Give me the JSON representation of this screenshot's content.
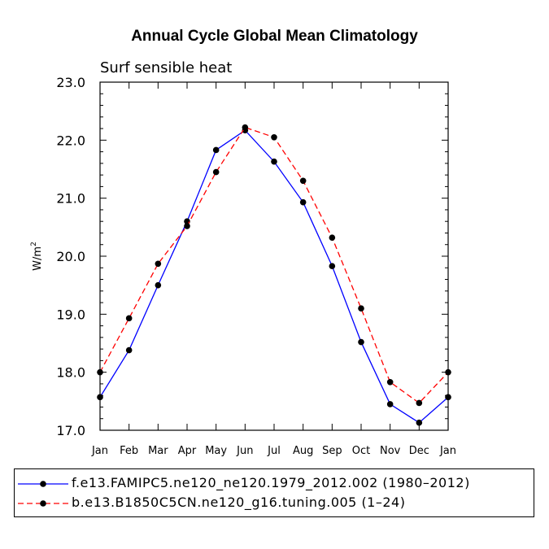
{
  "title": "Annual Cycle Global Mean Climatology",
  "chart_data": {
    "type": "line",
    "subtitle": "Surf sensible heat",
    "ylabel": "W/m",
    "ylabel_superscript": "2",
    "ylim": [
      17.0,
      23.0
    ],
    "yticks": [
      "17.0",
      "18.0",
      "19.0",
      "20.0",
      "21.0",
      "22.0",
      "23.0"
    ],
    "categories": [
      "Jan",
      "Feb",
      "Mar",
      "Apr",
      "May",
      "Jun",
      "Jul",
      "Aug",
      "Sep",
      "Oct",
      "Nov",
      "Dec",
      "Jan"
    ],
    "series": [
      {
        "name": "f.e13.FAMIPC5.ne120_ne120.1979_2012.002 (1980–2012)",
        "color": "#0000ff",
        "dash": "solid",
        "values": [
          17.57,
          18.38,
          19.5,
          20.6,
          21.83,
          22.17,
          21.63,
          20.93,
          19.83,
          18.52,
          17.45,
          17.13,
          17.57
        ]
      },
      {
        "name": "b.e13.B1850C5CN.ne120_g16.tuning.005 (1–24)",
        "color": "#ff0000",
        "dash": "dashed",
        "values": [
          18.0,
          18.93,
          19.87,
          20.52,
          21.45,
          22.22,
          22.05,
          21.3,
          20.32,
          19.1,
          17.83,
          17.47,
          18.0
        ]
      }
    ]
  }
}
